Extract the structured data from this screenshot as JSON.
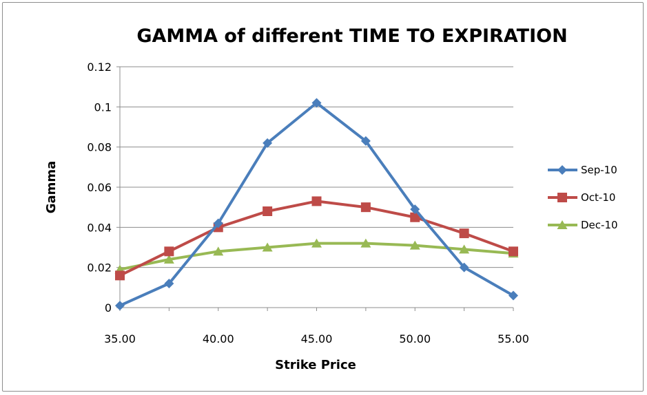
{
  "chart_data": {
    "type": "line",
    "title": "GAMMA of different TIME TO EXPIRATION",
    "xlabel": "Strike Price",
    "ylabel": "Gamma",
    "x": [
      35.0,
      37.5,
      40.0,
      42.5,
      45.0,
      47.5,
      50.0,
      52.5,
      55.0
    ],
    "x_ticks": [
      "35.00",
      "40.00",
      "45.00",
      "50.00",
      "55.00"
    ],
    "x_tick_values": [
      35.0,
      40.0,
      45.0,
      50.0,
      55.0
    ],
    "xlim": [
      35.0,
      55.0
    ],
    "y_ticks": [
      "0",
      "0.02",
      "0.04",
      "0.06",
      "0.08",
      "0.1",
      "0.12"
    ],
    "y_tick_values": [
      0,
      0.02,
      0.04,
      0.06,
      0.08,
      0.1,
      0.12
    ],
    "ylim": [
      0,
      0.12
    ],
    "grid": "horizontal",
    "legend_position": "right",
    "series": [
      {
        "name": "Sep-10",
        "color": "#4a7ebb",
        "marker": "diamond",
        "values": [
          0.001,
          0.012,
          0.042,
          0.082,
          0.102,
          0.083,
          0.049,
          0.02,
          0.006
        ]
      },
      {
        "name": "Oct-10",
        "color": "#be4b48",
        "marker": "square",
        "values": [
          0.016,
          0.028,
          0.04,
          0.048,
          0.053,
          0.05,
          0.045,
          0.037,
          0.028
        ]
      },
      {
        "name": "Dec-10",
        "color": "#98b954",
        "marker": "triangle",
        "values": [
          0.019,
          0.024,
          0.028,
          0.03,
          0.032,
          0.032,
          0.031,
          0.029,
          0.027
        ]
      }
    ]
  }
}
